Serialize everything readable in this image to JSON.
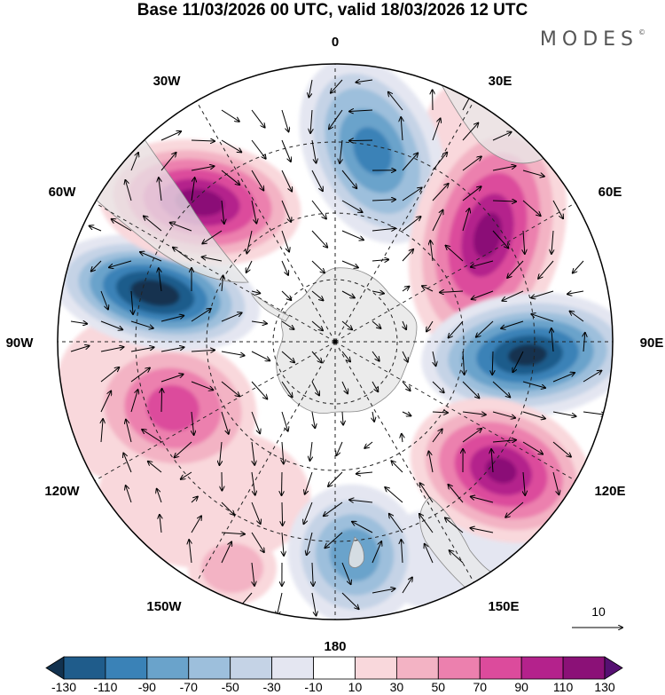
{
  "header": {
    "title": "Base 11/03/2026 00 UTC, valid 18/03/2026 12 UTC",
    "brand": "MODES",
    "brand_mark": "©"
  },
  "map": {
    "projection": "south-polar-stereographic",
    "center": "South Pole",
    "longitude_labels": [
      "0",
      "30E",
      "60E",
      "90E",
      "120E",
      "150E",
      "180",
      "150W",
      "120W",
      "90W",
      "60W",
      "30W"
    ],
    "vector_scale": {
      "label": "10"
    },
    "anomalies": [
      {
        "sign": "negative",
        "value": -90,
        "sector": "0–20E"
      },
      {
        "sign": "positive",
        "value": 110,
        "sector": "30E–60E"
      },
      {
        "sign": "negative",
        "value": -130,
        "sector": "90E"
      },
      {
        "sign": "positive",
        "value": 110,
        "sector": "110E–130E"
      },
      {
        "sign": "negative",
        "value": -70,
        "sector": "170E–180"
      },
      {
        "sign": "positive",
        "value": 50,
        "sector": "140W–150W"
      },
      {
        "sign": "positive",
        "value": 70,
        "sector": "100W–110W"
      },
      {
        "sign": "negative",
        "value": -130,
        "sector": "70W–80W"
      },
      {
        "sign": "positive",
        "value": 110,
        "sector": "40W–50W"
      }
    ]
  },
  "colorbar": {
    "ticks": [
      "-130",
      "-110",
      "-90",
      "-70",
      "-50",
      "-30",
      "-10",
      "10",
      "30",
      "50",
      "70",
      "90",
      "110",
      "130"
    ],
    "colors": [
      "#12324f",
      "#1f5c8b",
      "#3a82b7",
      "#6aa3cb",
      "#9dbfdc",
      "#c5d3e6",
      "#e4e6f1",
      "#ffffff",
      "#f9d8dc",
      "#f3b3c4",
      "#ec80ae",
      "#dc4b9c",
      "#b4228c",
      "#8b1177",
      "#561072"
    ]
  },
  "colors": {
    "land": "#e8e8e8",
    "ocean": "#ffffff",
    "grid": "#222222"
  }
}
